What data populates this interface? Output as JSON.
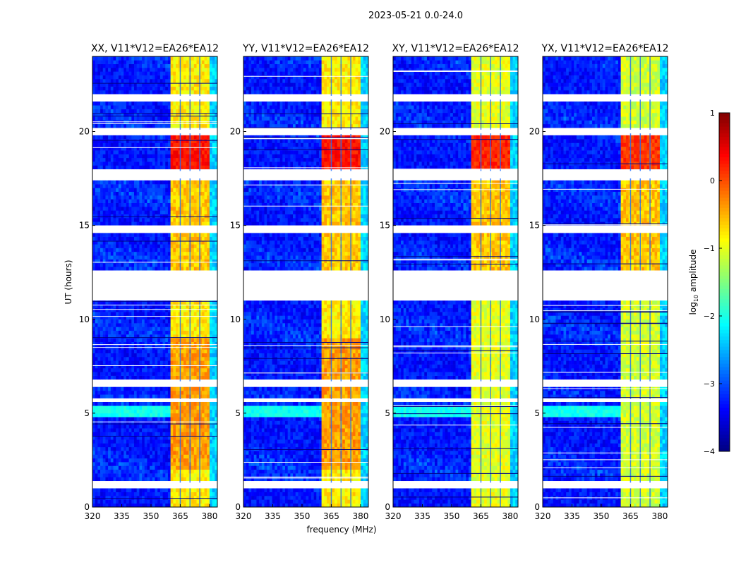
{
  "chart_data": {
    "type": "heatmap",
    "suptitle": "2023-05-21 0.0-24.0",
    "xlabel": "frequency (MHz)",
    "ylabel": "UT (hours)",
    "xlim": [
      320,
      384
    ],
    "ylim": [
      0,
      24
    ],
    "xticks": [
      320,
      335,
      350,
      365,
      380
    ],
    "yticks": [
      0,
      5,
      10,
      15,
      20
    ],
    "colormap": "jet",
    "colorbar": {
      "label_main": "log",
      "label_sub": "10",
      "label_rest": " amplitude",
      "range": [
        -4,
        1
      ],
      "ticks": [
        1,
        0,
        -1,
        -2,
        -3,
        -4
      ],
      "tick_labels": [
        "1",
        "0",
        "−1",
        "−2",
        "−3",
        "−4"
      ]
    },
    "flagged_hours": [
      [
        21.7,
        21.9
      ],
      [
        19.9,
        20.1
      ],
      [
        17.5,
        17.9
      ],
      [
        14.6,
        15.0
      ],
      [
        11.0,
        12.6
      ],
      [
        6.4,
        6.7
      ],
      [
        5.6,
        5.75
      ],
      [
        1.0,
        1.3
      ]
    ],
    "rfi_band_mhz": [
      360.5,
      380
    ],
    "panels": [
      {
        "title": "XX, V11*V12=EA26*EA12",
        "band_level": -0.8,
        "burst_level": 0.3
      },
      {
        "title": "YY, V11*V12=EA26*EA12",
        "band_level": -0.8,
        "burst_level": 0.3
      },
      {
        "title": "XY, V11*V12=EA26*EA12",
        "band_level": -1.0,
        "burst_level": 0.2
      },
      {
        "title": "YX, V11*V12=EA26*EA12",
        "band_level": -1.1,
        "burst_level": 0.1
      }
    ]
  }
}
